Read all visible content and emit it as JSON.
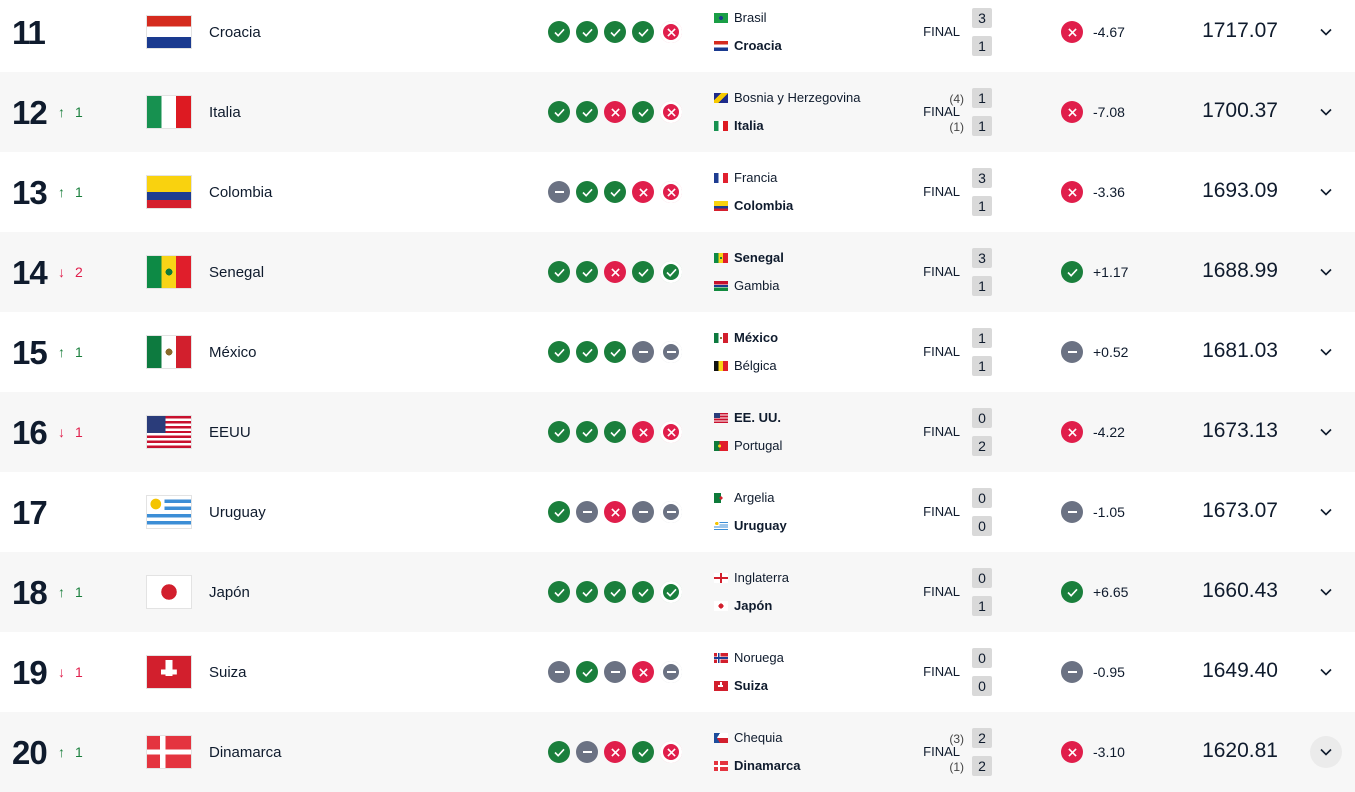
{
  "final_label": "FINAL",
  "colors": {
    "win": "#1a7f3c",
    "loss": "#e01e4b",
    "draw": "#6b7283"
  },
  "rows": [
    {
      "rank": "11",
      "change_dir": "",
      "change": "",
      "team": "Croacia",
      "flag": "croatia",
      "form": [
        "W",
        "W",
        "W",
        "W",
        "L"
      ],
      "match": {
        "home": "Brasil",
        "home_flag": "brazil",
        "away": "Croacia",
        "away_flag": "croatia",
        "winner": "away",
        "home_pen": "",
        "away_pen": "",
        "home_score": "3",
        "away_score": "1"
      },
      "result": "L",
      "delta": "-4.67",
      "points": "1717.07"
    },
    {
      "rank": "12",
      "change_dir": "up",
      "change": "1",
      "team": "Italia",
      "flag": "italy",
      "form": [
        "W",
        "W",
        "L",
        "W",
        "L"
      ],
      "match": {
        "home": "Bosnia y Herzegovina",
        "home_flag": "bosnia",
        "away": "Italia",
        "away_flag": "italy",
        "winner": "away",
        "home_pen": "(4)",
        "away_pen": "(1)",
        "home_score": "1",
        "away_score": "1"
      },
      "result": "L",
      "delta": "-7.08",
      "points": "1700.37"
    },
    {
      "rank": "13",
      "change_dir": "up",
      "change": "1",
      "team": "Colombia",
      "flag": "colombia",
      "form": [
        "D",
        "W",
        "W",
        "L",
        "L"
      ],
      "match": {
        "home": "Francia",
        "home_flag": "france",
        "away": "Colombia",
        "away_flag": "colombia",
        "winner": "away",
        "home_pen": "",
        "away_pen": "",
        "home_score": "3",
        "away_score": "1"
      },
      "result": "L",
      "delta": "-3.36",
      "points": "1693.09"
    },
    {
      "rank": "14",
      "change_dir": "down",
      "change": "2",
      "team": "Senegal",
      "flag": "senegal",
      "form": [
        "W",
        "W",
        "L",
        "W",
        "W"
      ],
      "match": {
        "home": "Senegal",
        "home_flag": "senegal",
        "away": "Gambia",
        "away_flag": "gambia",
        "winner": "home",
        "home_pen": "",
        "away_pen": "",
        "home_score": "3",
        "away_score": "1"
      },
      "result": "W",
      "delta": "+1.17",
      "points": "1688.99"
    },
    {
      "rank": "15",
      "change_dir": "up",
      "change": "1",
      "team": "México",
      "flag": "mexico",
      "form": [
        "W",
        "W",
        "W",
        "D",
        "D"
      ],
      "match": {
        "home": "México",
        "home_flag": "mexico",
        "away": "Bélgica",
        "away_flag": "belgium",
        "winner": "home",
        "home_pen": "",
        "away_pen": "",
        "home_score": "1",
        "away_score": "1"
      },
      "result": "D",
      "delta": "+0.52",
      "points": "1681.03"
    },
    {
      "rank": "16",
      "change_dir": "down",
      "change": "1",
      "team": "EEUU",
      "flag": "usa",
      "form": [
        "W",
        "W",
        "W",
        "L",
        "L"
      ],
      "match": {
        "home": "EE. UU.",
        "home_flag": "usa",
        "away": "Portugal",
        "away_flag": "portugal",
        "winner": "home",
        "home_pen": "",
        "away_pen": "",
        "home_score": "0",
        "away_score": "2"
      },
      "result": "L",
      "delta": "-4.22",
      "points": "1673.13"
    },
    {
      "rank": "17",
      "change_dir": "",
      "change": "",
      "team": "Uruguay",
      "flag": "uruguay",
      "form": [
        "W",
        "D",
        "L",
        "D",
        "D"
      ],
      "match": {
        "home": "Argelia",
        "home_flag": "algeria",
        "away": "Uruguay",
        "away_flag": "uruguay",
        "winner": "away",
        "home_pen": "",
        "away_pen": "",
        "home_score": "0",
        "away_score": "0"
      },
      "result": "D",
      "delta": "-1.05",
      "points": "1673.07"
    },
    {
      "rank": "18",
      "change_dir": "up",
      "change": "1",
      "team": "Japón",
      "flag": "japan",
      "form": [
        "W",
        "W",
        "W",
        "W",
        "W"
      ],
      "match": {
        "home": "Inglaterra",
        "home_flag": "england",
        "away": "Japón",
        "away_flag": "japan",
        "winner": "away",
        "home_pen": "",
        "away_pen": "",
        "home_score": "0",
        "away_score": "1"
      },
      "result": "W",
      "delta": "+6.65",
      "points": "1660.43"
    },
    {
      "rank": "19",
      "change_dir": "down",
      "change": "1",
      "team": "Suiza",
      "flag": "switzerland",
      "form": [
        "D",
        "W",
        "D",
        "L",
        "D"
      ],
      "match": {
        "home": "Noruega",
        "home_flag": "norway",
        "away": "Suiza",
        "away_flag": "switzerland",
        "winner": "away",
        "home_pen": "",
        "away_pen": "",
        "home_score": "0",
        "away_score": "0"
      },
      "result": "D",
      "delta": "-0.95",
      "points": "1649.40"
    },
    {
      "rank": "20",
      "change_dir": "up",
      "change": "1",
      "team": "Dinamarca",
      "flag": "denmark",
      "form": [
        "W",
        "D",
        "L",
        "W",
        "L"
      ],
      "match": {
        "home": "Chequia",
        "home_flag": "czechia",
        "away": "Dinamarca",
        "away_flag": "denmark",
        "winner": "away",
        "home_pen": "(3)",
        "away_pen": "(1)",
        "home_score": "2",
        "away_score": "2"
      },
      "result": "L",
      "delta": "-3.10",
      "points": "1620.81"
    }
  ]
}
